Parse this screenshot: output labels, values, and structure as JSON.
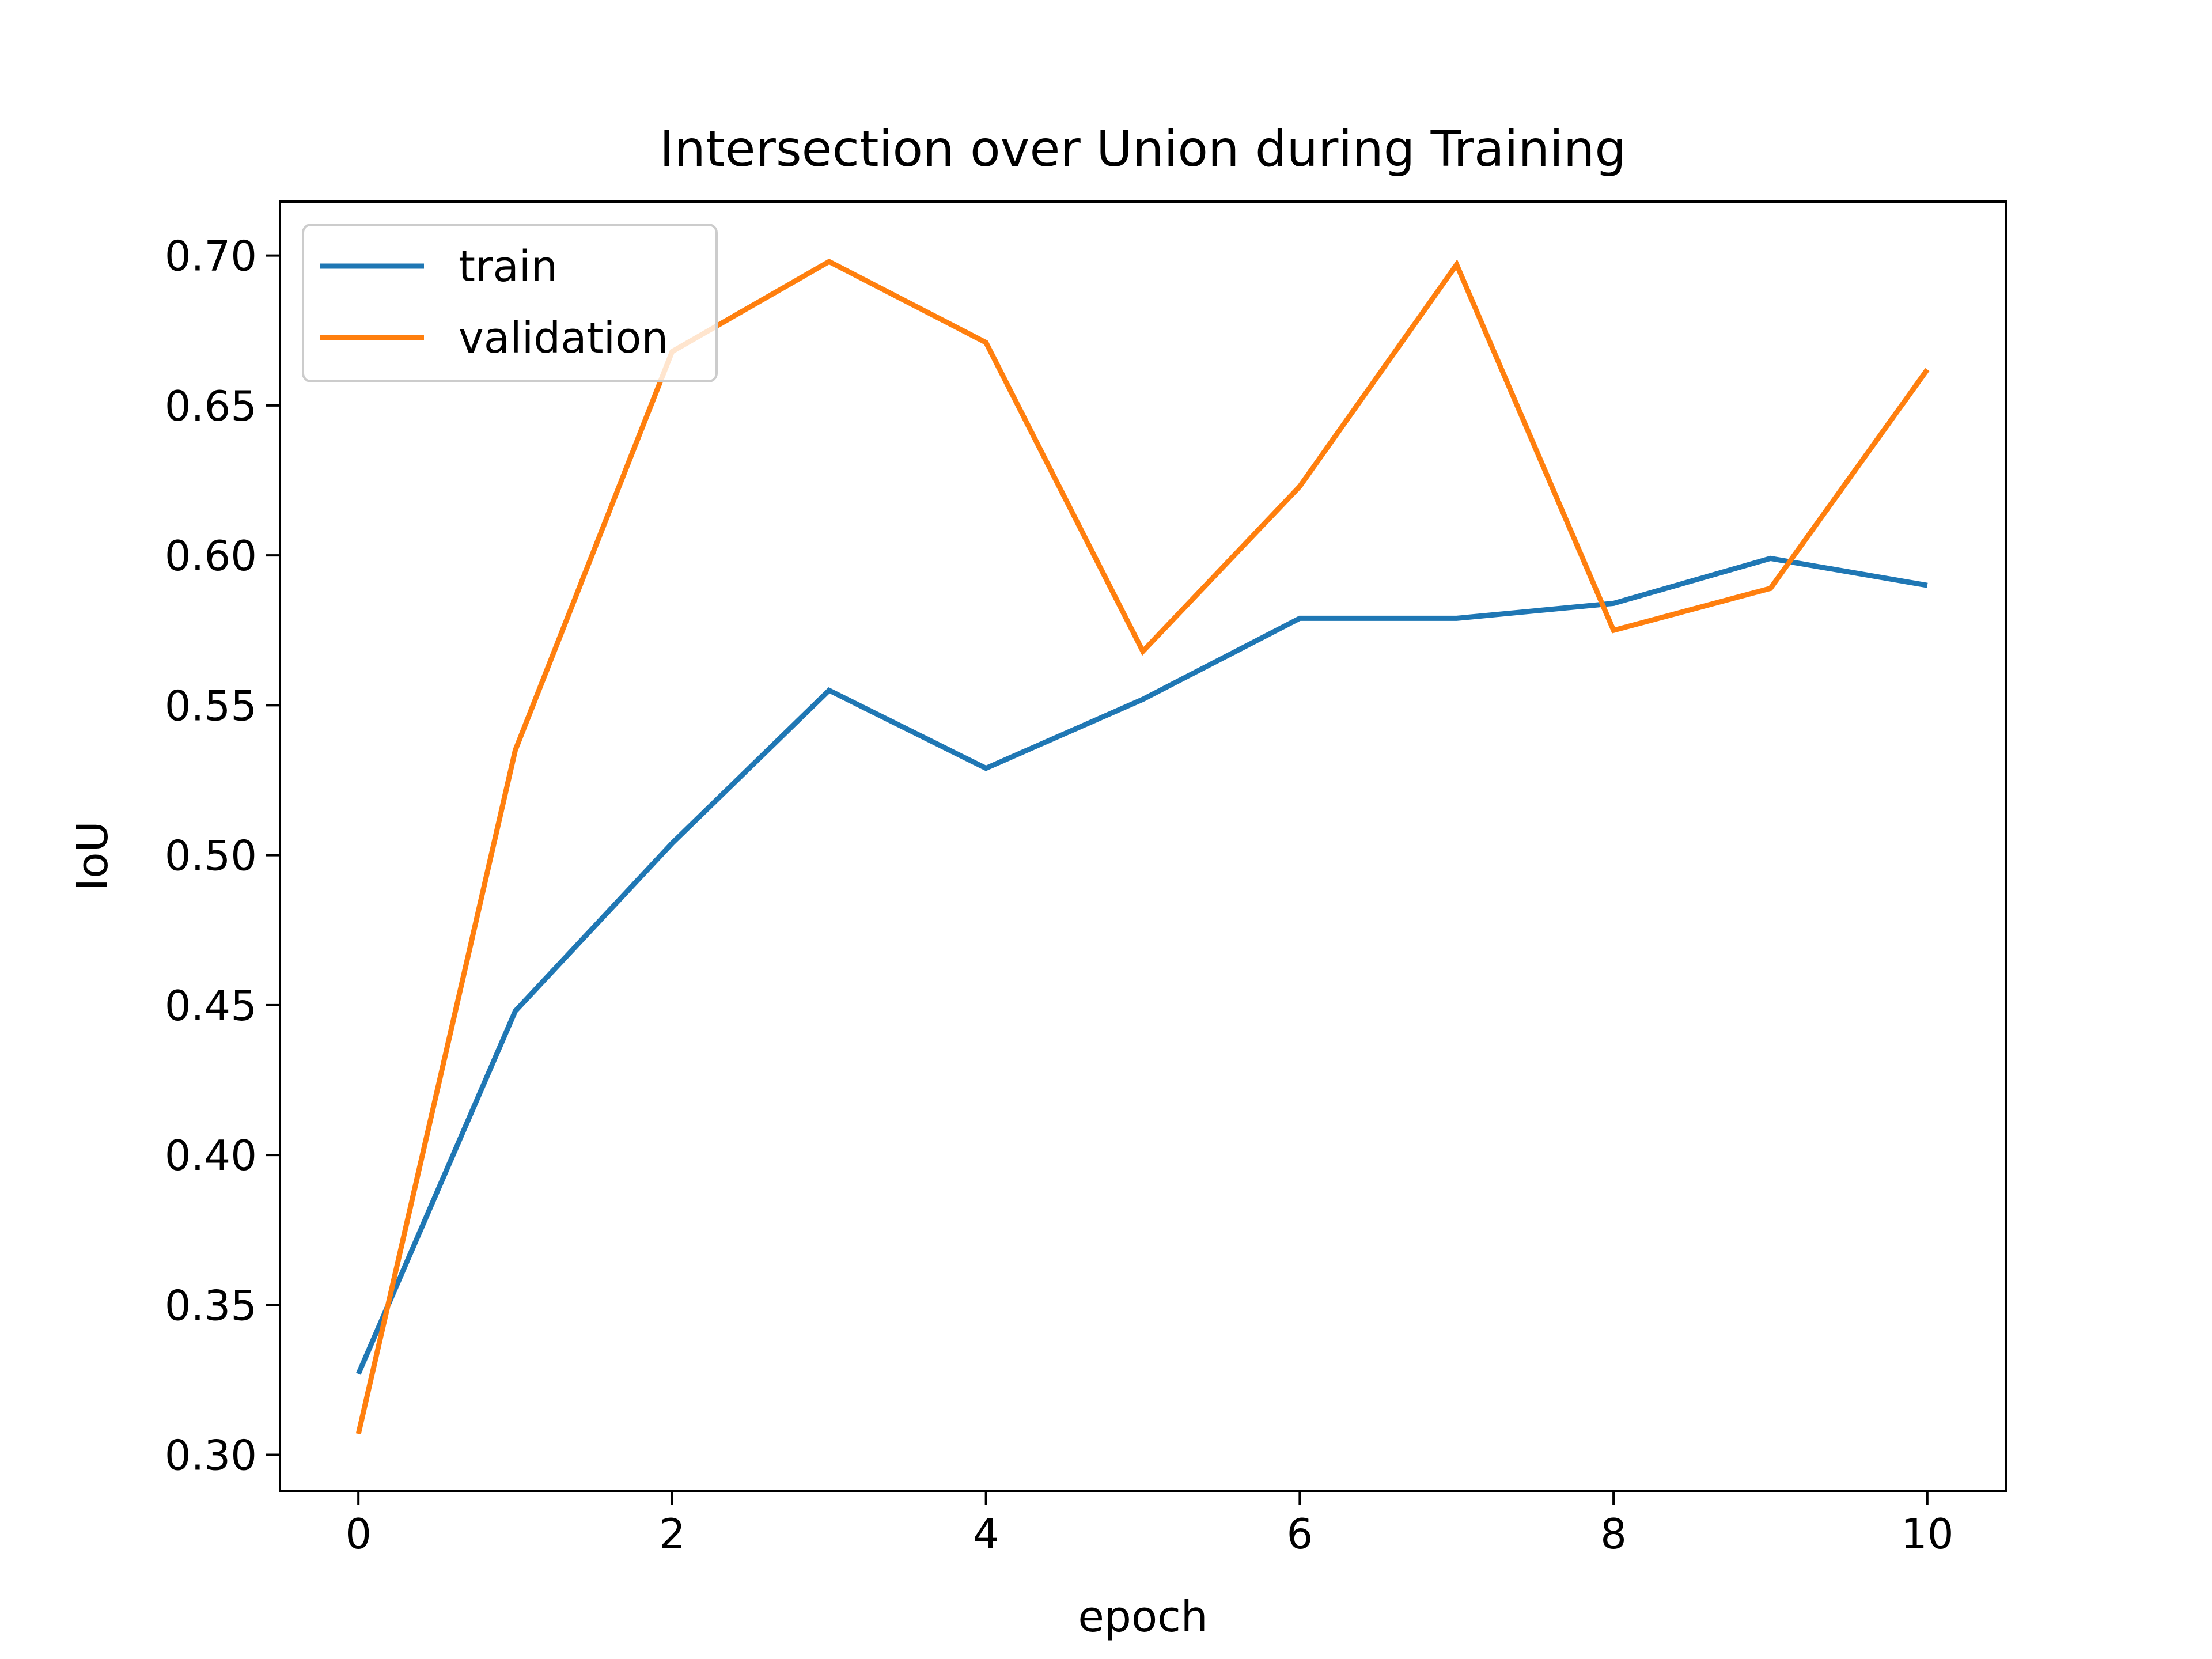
{
  "chart_data": {
    "type": "line",
    "title": "Intersection over Union during Training",
    "xlabel": "epoch",
    "ylabel": "IoU",
    "xlim": [
      -0.5,
      10.5
    ],
    "ylim": [
      0.288,
      0.718
    ],
    "x": [
      0,
      1,
      2,
      3,
      4,
      5,
      6,
      7,
      8,
      9,
      10
    ],
    "xticks": [
      0,
      2,
      4,
      6,
      8,
      10
    ],
    "xtick_labels": [
      "0",
      "2",
      "4",
      "6",
      "8",
      "10"
    ],
    "yticks": [
      0.3,
      0.35,
      0.4,
      0.45,
      0.5,
      0.55,
      0.6,
      0.65,
      0.7
    ],
    "ytick_labels": [
      "0.30",
      "0.35",
      "0.40",
      "0.45",
      "0.50",
      "0.55",
      "0.60",
      "0.65",
      "0.70"
    ],
    "grid": false,
    "legend_position": "top-left",
    "series": [
      {
        "name": "train",
        "color": "#1f77b4",
        "values": [
          0.327,
          0.448,
          0.504,
          0.555,
          0.529,
          0.552,
          0.579,
          0.579,
          0.584,
          0.599,
          0.59
        ]
      },
      {
        "name": "validation",
        "color": "#ff7f0e",
        "values": [
          0.307,
          0.535,
          0.668,
          0.698,
          0.671,
          0.568,
          0.623,
          0.697,
          0.575,
          0.589,
          0.662
        ]
      }
    ]
  }
}
